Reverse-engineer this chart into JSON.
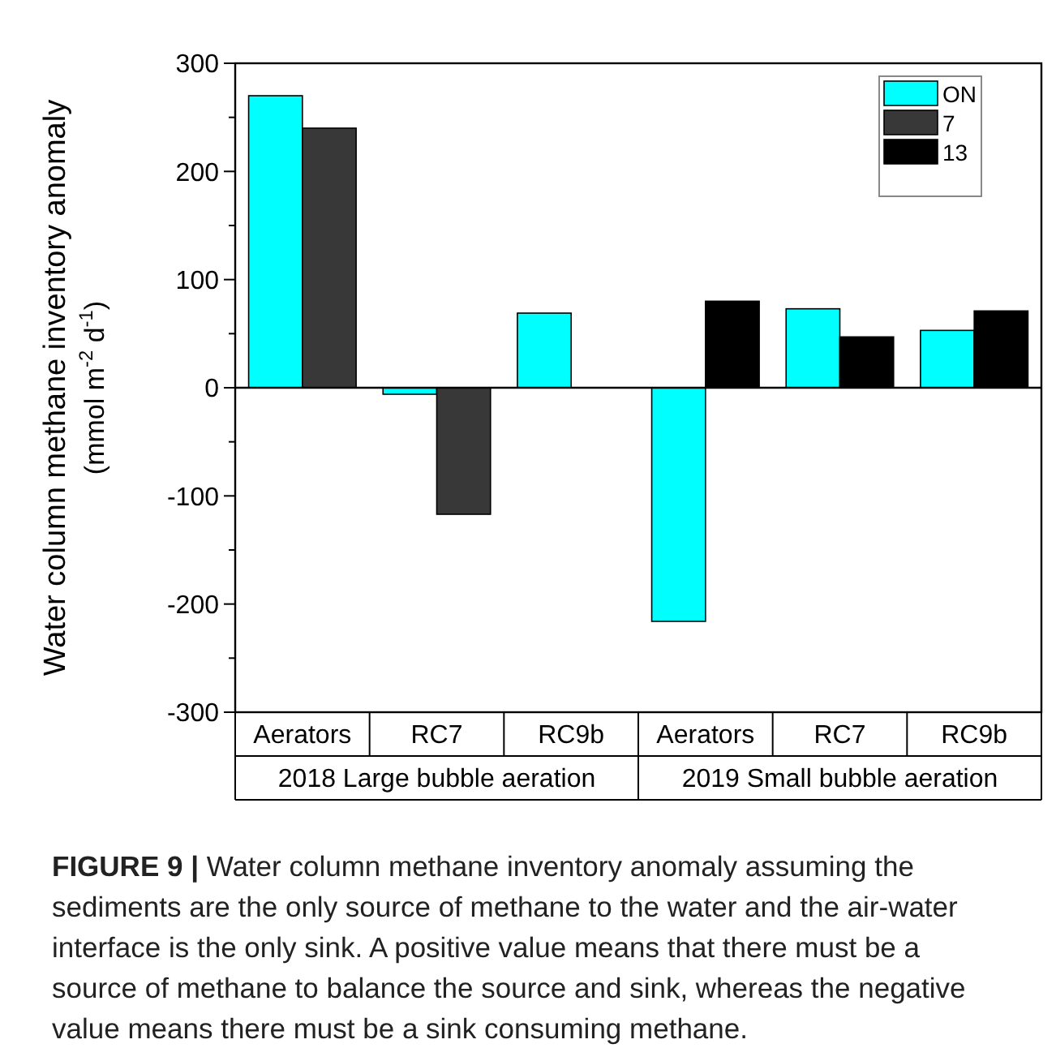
{
  "chart_data": {
    "type": "bar",
    "ylabel": "Water column methane inventory anomaly (mmol m$^{-2}$ d$^{-1}$)",
    "categories": [
      "Aerators",
      "RC7",
      "RC9b",
      "Aerators",
      "RC7",
      "RC9b"
    ],
    "series": [
      {
        "name": "ON",
        "color": "#00ffff",
        "values": [
          270,
          -6,
          69,
          -216,
          73,
          53
        ]
      },
      {
        "name": "7",
        "color": "#383838",
        "values": [
          240,
          -117,
          null,
          null,
          null,
          null
        ]
      },
      {
        "name": "13",
        "color": "#000000",
        "values": [
          null,
          null,
          null,
          80,
          47,
          71
        ]
      }
    ],
    "ylim": [
      -300,
      300
    ],
    "yticks": [
      -300,
      {
        "value": -250,
        "label": null
      },
      -200,
      {
        "value": -150,
        "label": null
      },
      -100,
      {
        "value": -50,
        "label": null
      },
      0,
      {
        "value": 50,
        "label": null
      },
      100,
      {
        "value": 150,
        "label": null
      },
      200,
      {
        "value": 250,
        "label": null
      },
      300
    ],
    "ref_lines": [
      {
        "axis": "y",
        "value": 0,
        "label": null
      }
    ],
    "legend": "top right",
    "grid": false,
    "annotations": [
      "2018 Large bubble aeration",
      "2019 Small bubble aeration",
      "FIGURE 9 | Water column methane inventory anomaly assuming the sediments are the only source of methane to the water and the air-water interface is the only sink. A positive value means that there must be a source of methane to balance the source and sink, whereas the negative value means there must be a sink consuming methane."
    ]
  }
}
